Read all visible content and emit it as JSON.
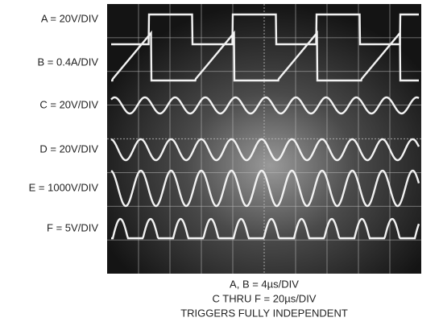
{
  "channel_labels": [
    "A = 20V/DIV",
    "B = 0.4A/DIV",
    "C = 20V/DIV",
    "D = 20V/DIV",
    "E = 1000V/DIV",
    "F = 5V/DIV"
  ],
  "caption": [
    "A, B = 4µs/DIV",
    "C THRU F  = 20µs/DIV",
    "TRIGGERS FULLY INDEPENDENT"
  ]
}
